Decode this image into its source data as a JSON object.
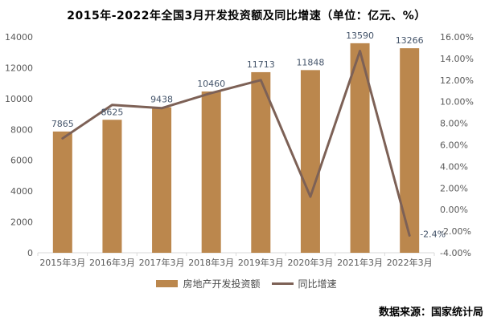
{
  "title": "2015年-2022年全国3月开发投资额及同比增速（单位：亿元、%）",
  "source": "数据来源：国家统计局",
  "legend": {
    "bar": "房地产开发投资额",
    "line": "同比增速"
  },
  "colors": {
    "bar": "#BB874D",
    "line": "#7D6156",
    "axis_text": "#595959",
    "data_label": "#44546A",
    "axis_line": "#D9D9D9",
    "title_text": "#000000"
  },
  "chart_data": {
    "type": "bar",
    "subtype": "combo-bar-line",
    "title": "2015年-2022年全国3月开发投资额及同比增速（单位：亿元、%）",
    "categories": [
      "2015年3月",
      "2016年3月",
      "2017年3月",
      "2018年3月",
      "2019年3月",
      "2020年3月",
      "2021年3月",
      "2022年3月"
    ],
    "series": [
      {
        "name": "房地产开发投资额",
        "type": "bar",
        "axis": "left",
        "values": [
          7865,
          8625,
          9438,
          10460,
          11713,
          11848,
          13590,
          13266
        ],
        "data_labels": [
          "7865",
          "8625",
          "9438",
          "10460",
          "11713",
          "11848",
          "13590",
          "13266"
        ]
      },
      {
        "name": "同比增速",
        "type": "line",
        "axis": "right",
        "values": [
          6.6,
          9.7,
          9.4,
          10.8,
          12.0,
          1.2,
          14.7,
          -2.4
        ],
        "data_labels": [
          null,
          null,
          null,
          null,
          null,
          null,
          null,
          "-2.4%"
        ]
      }
    ],
    "left_axis": {
      "min": 0,
      "max": 14000,
      "step": 2000,
      "tick_labels": [
        "0",
        "2000",
        "4000",
        "6000",
        "8000",
        "10000",
        "12000",
        "14000"
      ]
    },
    "right_axis": {
      "min": -4,
      "max": 16,
      "step": 2,
      "tick_labels": [
        "-4.00%",
        "-2.00%",
        "0.00%",
        "2.00%",
        "4.00%",
        "6.00%",
        "8.00%",
        "10.00%",
        "12.00%",
        "14.00%",
        "16.00%"
      ]
    },
    "grid": false,
    "legend_position": "bottom"
  }
}
